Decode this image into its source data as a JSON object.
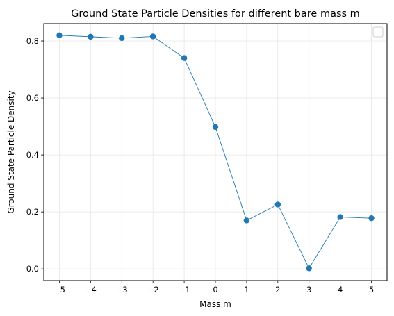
{
  "chart_data": {
    "type": "line",
    "title": "Ground State Particle Densities for different bare mass m",
    "xlabel": "Mass m",
    "ylabel": "Ground State Particle Density",
    "x": [
      -5,
      -4,
      -3,
      -2,
      -1,
      0,
      1,
      2,
      3,
      4,
      5
    ],
    "x_tick_labels": [
      "−5",
      "−4",
      "−3",
      "−2",
      "−1",
      "0",
      "1",
      "2",
      "3",
      "4",
      "5"
    ],
    "y_ticks": [
      0.0,
      0.2,
      0.4,
      0.6,
      0.8
    ],
    "y_tick_labels": [
      "0.0",
      "0.2",
      "0.4",
      "0.6",
      "0.8"
    ],
    "xlim": [
      -5.5,
      5.5
    ],
    "ylim": [
      -0.041,
      0.861
    ],
    "series": [
      {
        "values": [
          0.82,
          0.815,
          0.81,
          0.816,
          0.74,
          0.498,
          0.17,
          0.226,
          0.002,
          0.182,
          0.178
        ],
        "color": "#1f77b4",
        "marker": "circle"
      }
    ],
    "grid": true,
    "legend": "top-right, empty"
  }
}
